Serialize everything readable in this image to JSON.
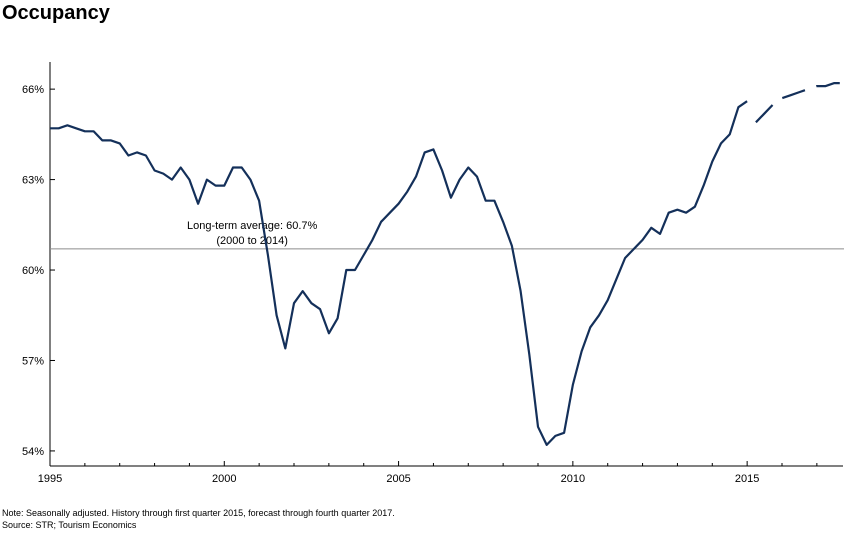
{
  "chart_data": {
    "type": "line",
    "title": "Occupancy",
    "xlim": [
      1995,
      2017.75
    ],
    "ylim": [
      53.5,
      66.9
    ],
    "x_ticks": [
      1995,
      2000,
      2005,
      2010,
      2015
    ],
    "x_tick_labels": [
      "1995",
      "2000",
      "2005",
      "2010",
      "2015"
    ],
    "y_ticks": [
      54,
      57,
      60,
      63,
      66
    ],
    "y_tick_labels": [
      "54%",
      "57%",
      "60%",
      "63%",
      "66%"
    ],
    "grid": false,
    "reference_line": {
      "value": 60.7,
      "label_line1": "Long-term average: 60.7%",
      "label_line2": "(2000 to 2014)"
    },
    "series": [
      {
        "segment": "history",
        "color": "#14305a",
        "points": [
          [
            1995.0,
            64.7
          ],
          [
            1995.25,
            64.7
          ],
          [
            1995.5,
            64.8
          ],
          [
            1995.75,
            64.7
          ],
          [
            1996.0,
            64.6
          ],
          [
            1996.25,
            64.6
          ],
          [
            1996.5,
            64.3
          ],
          [
            1996.75,
            64.3
          ],
          [
            1997.0,
            64.2
          ],
          [
            1997.25,
            63.8
          ],
          [
            1997.5,
            63.9
          ],
          [
            1997.75,
            63.8
          ],
          [
            1998.0,
            63.3
          ],
          [
            1998.25,
            63.2
          ],
          [
            1998.5,
            63.0
          ],
          [
            1998.75,
            63.4
          ],
          [
            1999.0,
            63.0
          ],
          [
            1999.25,
            62.2
          ],
          [
            1999.5,
            63.0
          ],
          [
            1999.75,
            62.8
          ],
          [
            2000.0,
            62.8
          ],
          [
            2000.25,
            63.4
          ],
          [
            2000.5,
            63.4
          ],
          [
            2000.75,
            63.0
          ],
          [
            2001.0,
            62.3
          ],
          [
            2001.25,
            60.5
          ],
          [
            2001.5,
            58.5
          ],
          [
            2001.75,
            57.4
          ],
          [
            2002.0,
            58.9
          ],
          [
            2002.25,
            59.3
          ],
          [
            2002.5,
            58.9
          ],
          [
            2002.75,
            58.7
          ],
          [
            2003.0,
            57.9
          ],
          [
            2003.25,
            58.4
          ],
          [
            2003.5,
            60.0
          ],
          [
            2003.75,
            60.0
          ],
          [
            2004.0,
            60.5
          ],
          [
            2004.25,
            61.0
          ],
          [
            2004.5,
            61.6
          ],
          [
            2004.75,
            61.9
          ],
          [
            2005.0,
            62.2
          ],
          [
            2005.25,
            62.6
          ],
          [
            2005.5,
            63.1
          ],
          [
            2005.75,
            63.9
          ],
          [
            2006.0,
            64.0
          ],
          [
            2006.25,
            63.3
          ],
          [
            2006.5,
            62.4
          ],
          [
            2006.75,
            63.0
          ],
          [
            2007.0,
            63.4
          ],
          [
            2007.25,
            63.1
          ],
          [
            2007.5,
            62.3
          ],
          [
            2007.75,
            62.3
          ],
          [
            2008.0,
            61.6
          ],
          [
            2008.25,
            60.8
          ],
          [
            2008.5,
            59.3
          ],
          [
            2008.75,
            57.2
          ],
          [
            2009.0,
            54.8
          ],
          [
            2009.25,
            54.2
          ],
          [
            2009.5,
            54.5
          ],
          [
            2009.75,
            54.6
          ],
          [
            2010.0,
            56.2
          ],
          [
            2010.25,
            57.3
          ],
          [
            2010.5,
            58.1
          ],
          [
            2010.75,
            58.5
          ],
          [
            2011.0,
            59.0
          ],
          [
            2011.25,
            59.7
          ],
          [
            2011.5,
            60.4
          ],
          [
            2011.75,
            60.7
          ],
          [
            2012.0,
            61.0
          ],
          [
            2012.25,
            61.4
          ],
          [
            2012.5,
            61.2
          ],
          [
            2012.75,
            61.9
          ],
          [
            2013.0,
            62.0
          ],
          [
            2013.25,
            61.9
          ],
          [
            2013.5,
            62.1
          ],
          [
            2013.75,
            62.8
          ],
          [
            2014.0,
            63.6
          ],
          [
            2014.25,
            64.2
          ],
          [
            2014.5,
            64.5
          ],
          [
            2014.75,
            65.4
          ],
          [
            2015.0,
            65.6
          ]
        ]
      },
      {
        "segment": "forecast",
        "color": "#14305a",
        "dashed": true,
        "points": [
          [
            2015.25,
            64.9
          ],
          [
            2015.5,
            65.2
          ],
          [
            2015.75,
            65.5
          ],
          [
            2016.0,
            65.7
          ],
          [
            2016.25,
            65.8
          ],
          [
            2016.5,
            65.9
          ],
          [
            2016.75,
            66.0
          ],
          [
            2017.0,
            66.1
          ],
          [
            2017.25,
            66.1
          ],
          [
            2017.5,
            66.2
          ],
          [
            2017.75,
            66.2
          ]
        ]
      }
    ]
  },
  "footer": {
    "note": "Note: Seasonally adjusted. History through first quarter 2015, forecast through fourth quarter 2017.",
    "source": "Source: STR; Tourism Economics"
  }
}
